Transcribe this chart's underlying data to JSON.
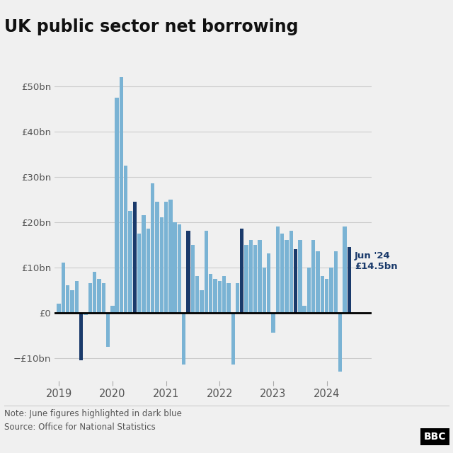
{
  "title": "UK public sector net borrowing",
  "note": "Note: June figures highlighted in dark blue",
  "source": "Source: Office for National Statistics",
  "annotation_label": "Jun '24\n£14.5bn",
  "light_blue": "#7ab3d4",
  "dark_blue": "#1a3a6b",
  "background": "#f0f0f0",
  "bar_values": [
    2.0,
    11.0,
    6.0,
    5.0,
    7.0,
    -10.5,
    -0.5,
    6.5,
    9.0,
    7.5,
    6.5,
    -7.5,
    1.5,
    47.5,
    52.0,
    32.5,
    22.5,
    24.5,
    17.5,
    21.5,
    18.5,
    28.5,
    24.5,
    21.0,
    24.5,
    25.0,
    20.0,
    19.5,
    -11.5,
    18.0,
    15.0,
    8.0,
    5.0,
    18.0,
    8.5,
    7.5,
    7.0,
    8.0,
    6.5,
    -11.5,
    6.5,
    18.5,
    15.0,
    16.0,
    15.0,
    16.0,
    10.0,
    13.0,
    -4.5,
    19.0,
    17.5,
    16.0,
    18.0,
    14.0,
    16.0,
    1.5,
    10.0,
    16.0,
    13.5,
    8.0,
    7.5,
    10.0,
    13.5,
    -13.0,
    19.0,
    14.5
  ],
  "note_color": "#555555",
  "ylim": [
    -15,
    57
  ],
  "yticks": [
    -10,
    0,
    10,
    20,
    30,
    40,
    50
  ],
  "ytick_labels": [
    "−£10bn",
    "£0",
    "£10bn",
    "£20bn",
    "£30bn",
    "£40bn",
    "£50bn"
  ]
}
